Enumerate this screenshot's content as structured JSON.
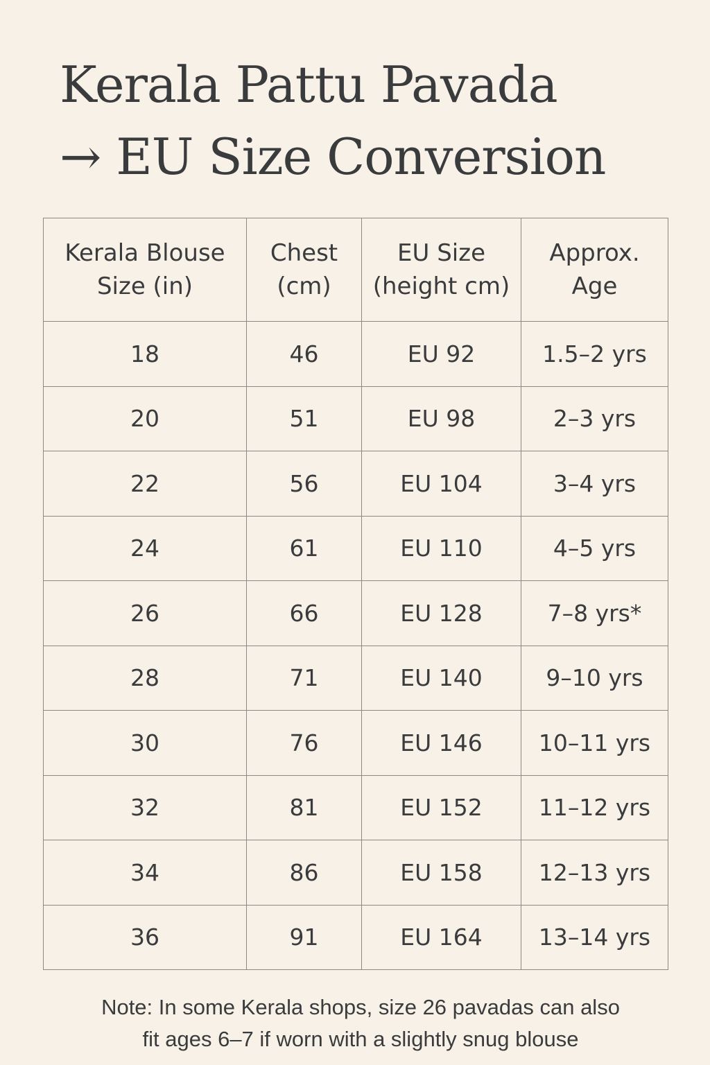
{
  "title_line1": "Kerala Pattu Pavada",
  "title_line2": "→ EU Size Conversion",
  "table": {
    "headers": [
      [
        "Kerala Blouse",
        "Size (in)"
      ],
      [
        "Chest",
        "(cm)"
      ],
      [
        "EU Size",
        "(height cm)"
      ],
      [
        "Approx.",
        "Age"
      ]
    ],
    "rows": [
      [
        "18",
        "46",
        "EU 92",
        "1.5–2 yrs"
      ],
      [
        "20",
        "51",
        "EU 98",
        "2–3 yrs"
      ],
      [
        "22",
        "56",
        "EU 104",
        "3–4 yrs"
      ],
      [
        "24",
        "61",
        "EU 110",
        "4–5 yrs"
      ],
      [
        "26",
        "66",
        "EU 128",
        "7–8 yrs*"
      ],
      [
        "28",
        "71",
        "EU 140",
        "9–10 yrs"
      ],
      [
        "30",
        "76",
        "EU 146",
        "10–11 yrs"
      ],
      [
        "32",
        "81",
        "EU 152",
        "11–12 yrs"
      ],
      [
        "34",
        "86",
        "EU 158",
        "12–13 yrs"
      ],
      [
        "36",
        "91",
        "EU 164",
        "13–14 yrs"
      ]
    ]
  },
  "note_line1": "Note: In some Kerala shops, size 26 pavadas can also",
  "note_line2": "fit ages 6–7 if worn with a slightly snug blouse"
}
